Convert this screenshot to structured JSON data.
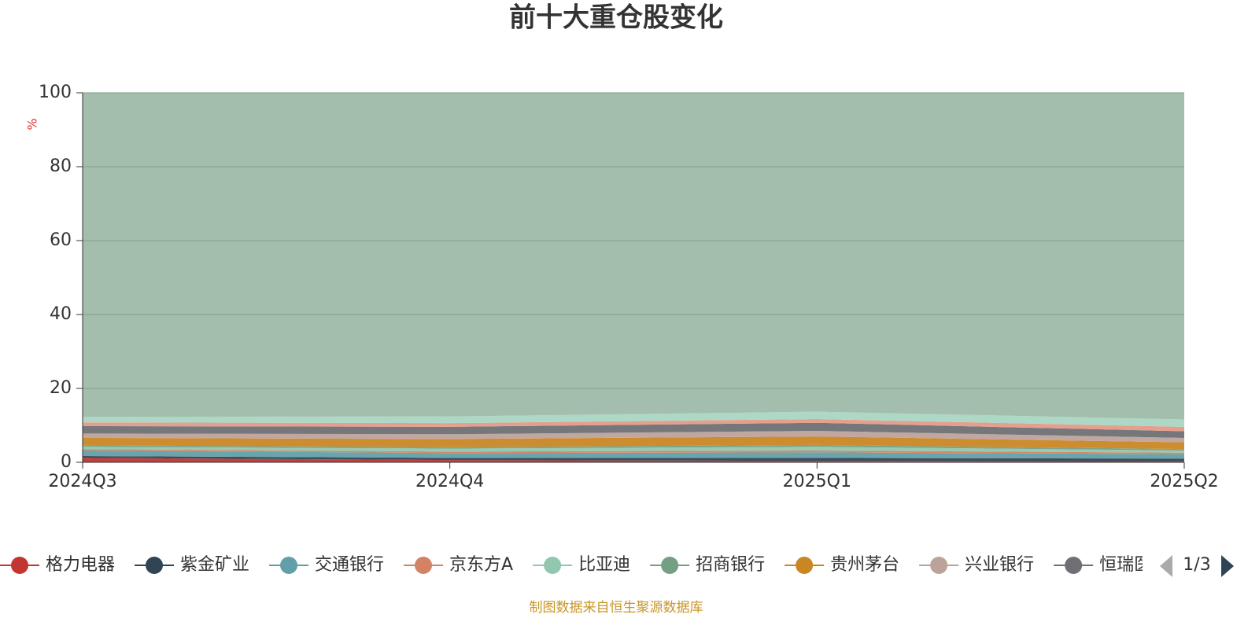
{
  "chart_data": {
    "type": "stacked_area",
    "title": "前十大重仓股变化",
    "y_unit": "%",
    "categories": [
      "2024Q3",
      "2024Q4",
      "2025Q1",
      "2025Q2"
    ],
    "ylim": [
      0,
      100
    ],
    "yticks": [
      0,
      20,
      40,
      60,
      80,
      100
    ],
    "grid": true,
    "series": [
      {
        "name": "格力电器",
        "color": "#c23531",
        "values": [
          1.2,
          0.6,
          0.4,
          0.3
        ]
      },
      {
        "name": "紫金矿业",
        "color": "#2f4554",
        "values": [
          0.5,
          0.6,
          0.8,
          0.7
        ]
      },
      {
        "name": "交通银行",
        "color": "#61a0a8",
        "values": [
          1.5,
          1.3,
          1.5,
          1.2
        ]
      },
      {
        "name": "京东方A",
        "color": "#d48265",
        "values": [
          0.4,
          0.4,
          0.5,
          0.4
        ]
      },
      {
        "name": "比亚迪",
        "color": "#91c7ae",
        "values": [
          0.6,
          0.8,
          1.0,
          0.6
        ]
      },
      {
        "name": "招商银行",
        "color": "#749f83",
        "values": [
          0.4,
          0.4,
          0.5,
          0.4
        ]
      },
      {
        "name": "贵州茅台",
        "color": "#ca8622",
        "values": [
          2.0,
          2.2,
          2.3,
          1.8
        ]
      },
      {
        "name": "兴业银行",
        "color": "#bda29a",
        "values": [
          1.2,
          1.3,
          1.5,
          1.2
        ]
      },
      {
        "name": "恒瑞医药",
        "color": "#6e7074",
        "values": [
          2.0,
          2.0,
          2.2,
          1.8
        ]
      },
      {
        "color": "#e49a88",
        "values": [
          1.0,
          1.0,
          1.0,
          1.2
        ]
      },
      {
        "color": "#a9d6c2",
        "values": [
          1.5,
          1.8,
          2.0,
          2.0
        ]
      },
      {
        "color": "#9fbaa9",
        "values": [
          87.7,
          87.6,
          86.3,
          88.4
        ]
      }
    ],
    "legend_page": "1/3",
    "source": "制图数据来自恒生聚源数据库"
  }
}
